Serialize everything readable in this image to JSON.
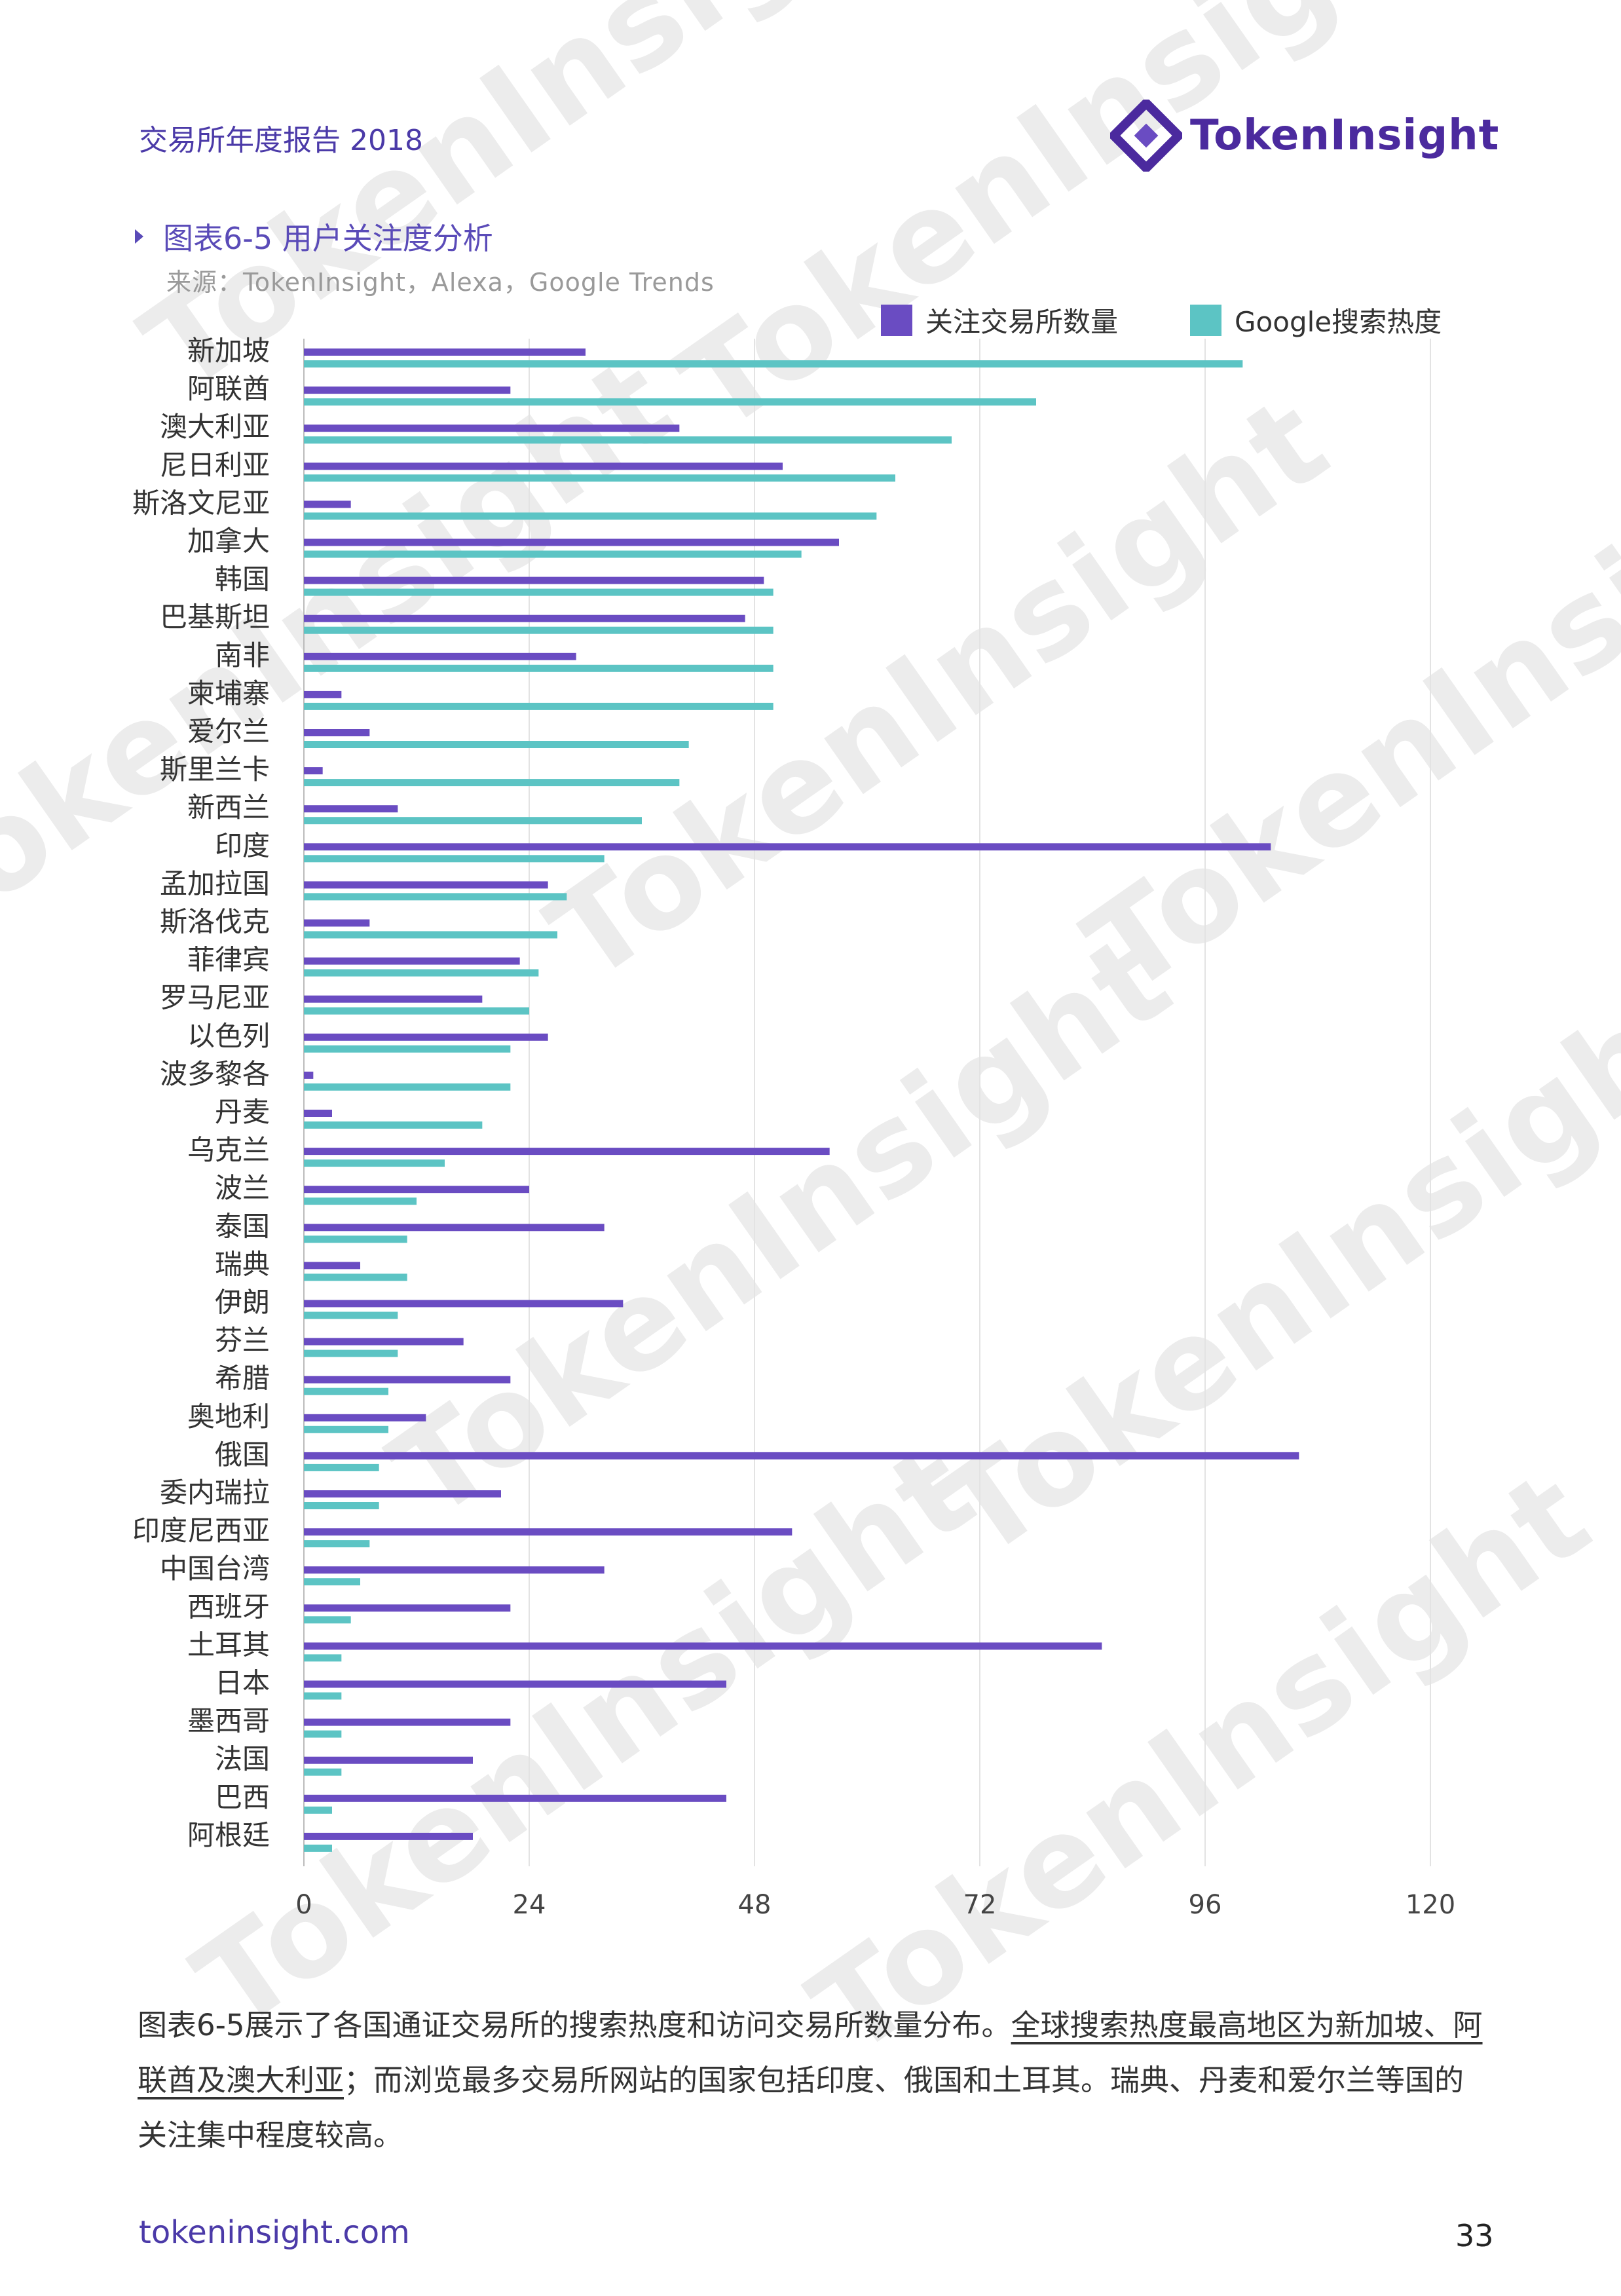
{
  "header": {
    "title": "交易所年度报告 2018",
    "logo_text": "TokenInsight"
  },
  "watermark_text": "TokenInsight",
  "figure": {
    "title": "图表6-5 用户关注度分析",
    "source": "来源：TokenInsight，Alexa，Google Trends"
  },
  "colors": {
    "purple": "#6a4cc2",
    "teal": "#5cc4c4",
    "brand": "#4b3aa8"
  },
  "chart_data": {
    "type": "bar",
    "orientation": "horizontal",
    "categories": [
      "新加坡",
      "阿联酋",
      "澳大利亚",
      "尼日利亚",
      "斯洛文尼亚",
      "加拿大",
      "韩国",
      "巴基斯坦",
      "南非",
      "柬埔寨",
      "爱尔兰",
      "斯里兰卡",
      "新西兰",
      "印度",
      "孟加拉国",
      "斯洛伐克",
      "菲律宾",
      "罗马尼亚",
      "以色列",
      "波多黎各",
      "丹麦",
      "乌克兰",
      "波兰",
      "泰国",
      "瑞典",
      "伊朗",
      "芬兰",
      "希腊",
      "奥地利",
      "俄国",
      "委内瑞拉",
      "印度尼西亚",
      "中国台湾",
      "西班牙",
      "土耳其",
      "日本",
      "墨西哥",
      "法国",
      "巴西",
      "阿根廷"
    ],
    "series": [
      {
        "name": "关注交易所数量",
        "color": "#6a4cc2",
        "values": [
          30,
          22,
          40,
          51,
          5,
          57,
          49,
          47,
          29,
          4,
          7,
          2,
          10,
          103,
          26,
          7,
          23,
          19,
          26,
          1,
          3,
          56,
          24,
          32,
          6,
          34,
          17,
          22,
          13,
          106,
          21,
          52,
          32,
          22,
          85,
          45,
          22,
          18,
          45,
          18
        ]
      },
      {
        "name": "Google搜索热度",
        "color": "#5cc4c4",
        "values": [
          100,
          78,
          69,
          63,
          61,
          53,
          50,
          50,
          50,
          50,
          41,
          40,
          36,
          32,
          28,
          27,
          25,
          24,
          22,
          22,
          19,
          15,
          12,
          11,
          11,
          10,
          10,
          9,
          9,
          8,
          8,
          7,
          6,
          5,
          4,
          4,
          4,
          4,
          3,
          3
        ]
      }
    ],
    "x_ticks": [
      0,
      24,
      48,
      72,
      96,
      120
    ],
    "xlim": [
      0,
      120
    ],
    "grid": "vertical",
    "legend_position": "top-right"
  },
  "paragraph": {
    "part1": "图表6-5展示了各国通证交易所的搜索热度和访问交易所数量分布。",
    "part2": "全球搜索热度最高地区为新加坡、阿联酋及澳大利亚",
    "part3": "；而浏览最多交易所网站的国家包括印度、俄国和土耳其。瑞典、丹麦和爱尔兰等国的关注集中程度较高。"
  },
  "footer": {
    "link": "tokeninsight.com",
    "page_number": "33"
  }
}
